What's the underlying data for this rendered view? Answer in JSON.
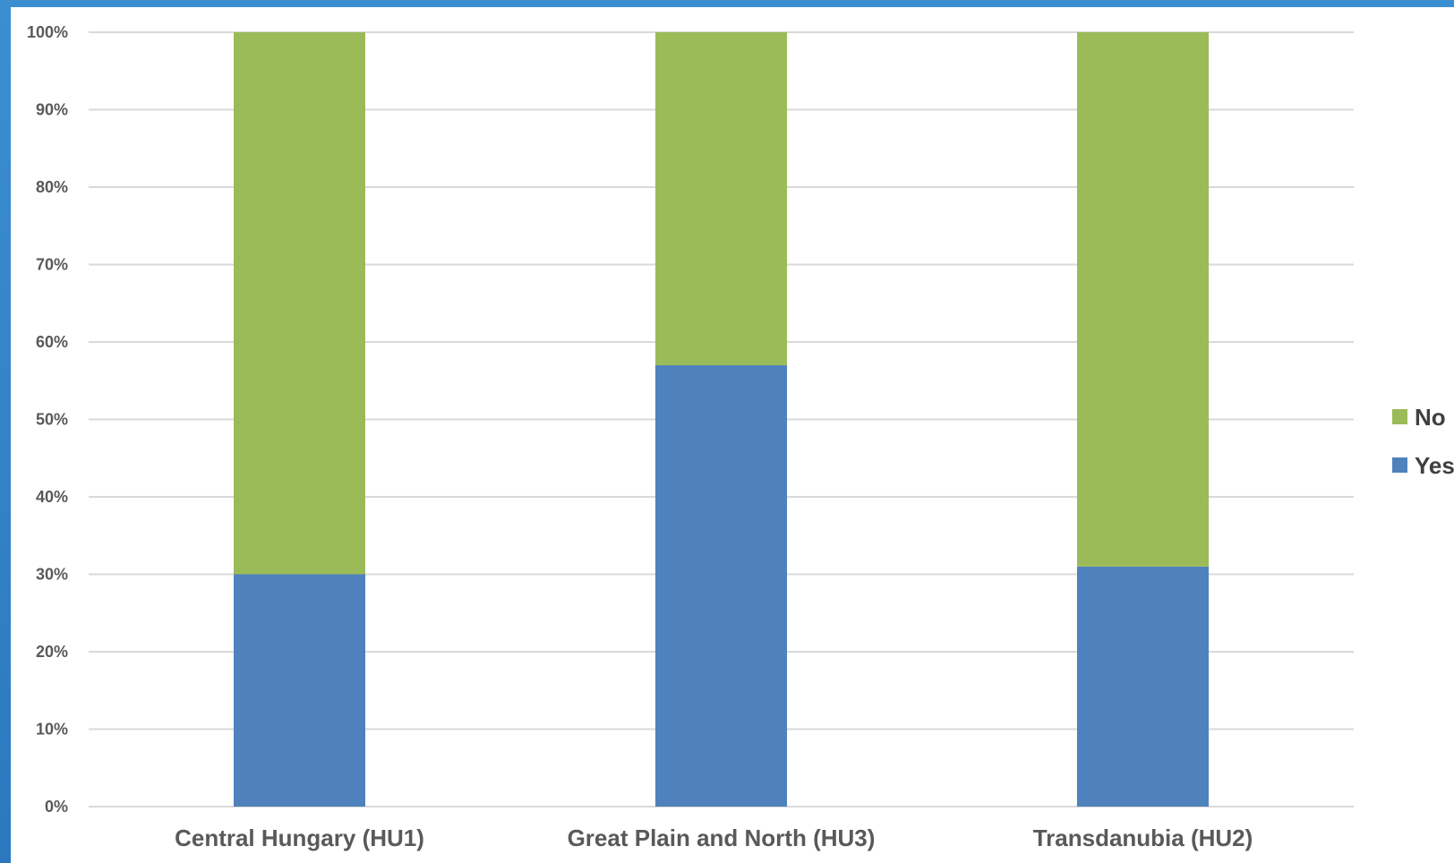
{
  "chart_data": {
    "type": "bar",
    "stacked": true,
    "percent_stacked": true,
    "categories": [
      "Central Hungary (HU1)",
      "Great Plain and North (HU3)",
      "Transdanubia (HU2)"
    ],
    "series": [
      {
        "name": "Yes",
        "color": "#4f81bd",
        "values": [
          30,
          57,
          31
        ]
      },
      {
        "name": "No",
        "color": "#9bbb59",
        "values": [
          70,
          43,
          69
        ]
      }
    ],
    "yticks": [
      "0%",
      "10%",
      "20%",
      "30%",
      "40%",
      "50%",
      "60%",
      "70%",
      "80%",
      "90%",
      "100%"
    ],
    "ylim": [
      0,
      100
    ],
    "grid": true,
    "legend_position": "right"
  }
}
